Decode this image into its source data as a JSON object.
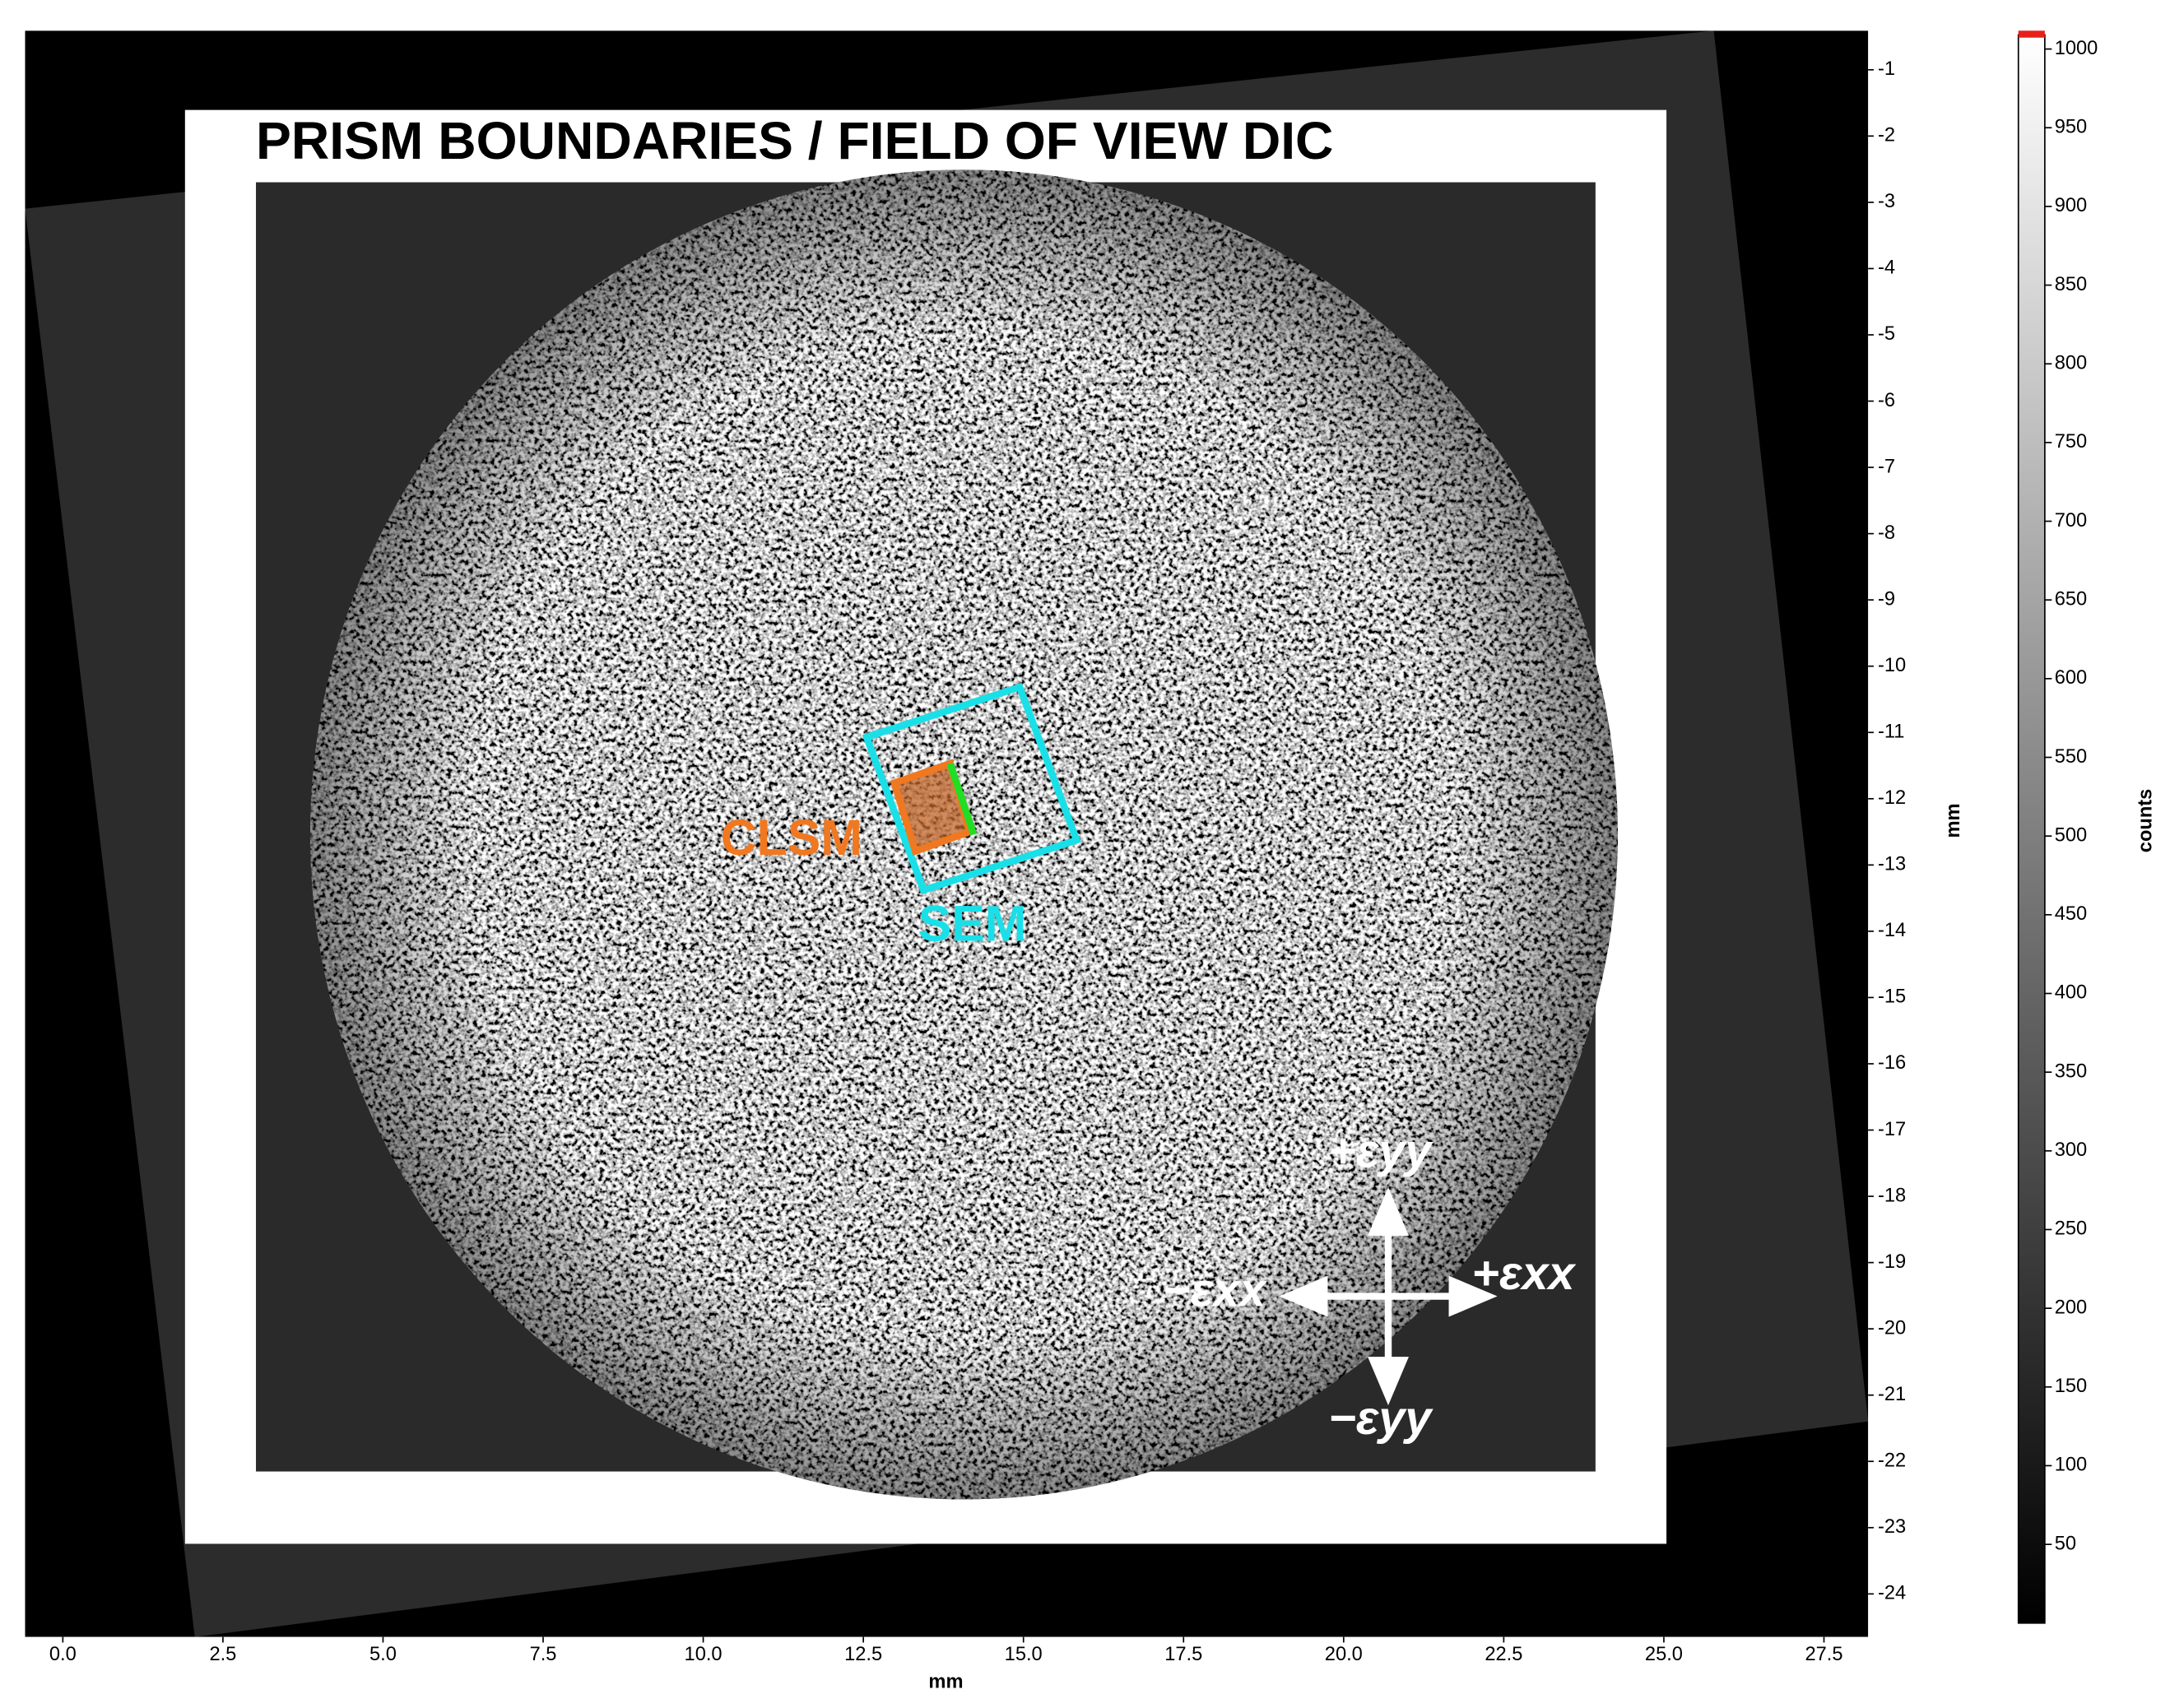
{
  "chart_data": {
    "type": "image",
    "title": "PRISM BOUNDARIES / FIELD OF VIEW DIC",
    "xlabel": "mm",
    "ylabel": "mm",
    "xlim": [
      -0.59,
      28.19
    ],
    "ylim": [
      -24.65,
      -0.41
    ],
    "xticks": [
      {
        "value": 0,
        "label": "0.0"
      },
      2.5,
      {
        "value": 5,
        "label": "5.0"
      },
      7.5,
      {
        "value": 10,
        "label": "10.0"
      },
      12.5,
      {
        "value": 15,
        "label": "15.0"
      },
      17.5,
      {
        "value": 20,
        "label": "20.0"
      },
      22.5,
      {
        "value": 25,
        "label": "25.0"
      },
      27.5
    ],
    "yticks": [
      -1,
      -2,
      -3,
      -4,
      -5,
      -6,
      -7,
      -8,
      -9,
      -10,
      -11,
      -12,
      -13,
      -14,
      -15,
      -16,
      -17,
      -18,
      -19,
      -20,
      -21,
      -22,
      -23,
      -24
    ],
    "annotations": [
      "CLSM",
      "SEM",
      "+εyy",
      "−εxx",
      "+εxx",
      "−εyy"
    ],
    "colorbar": {
      "label": "counts",
      "lim": [
        0,
        1009
      ],
      "ticks": [
        50,
        100,
        150,
        200,
        250,
        300,
        350,
        400,
        450,
        500,
        550,
        600,
        650,
        700,
        750,
        800,
        850,
        900,
        950,
        1000
      ]
    }
  }
}
